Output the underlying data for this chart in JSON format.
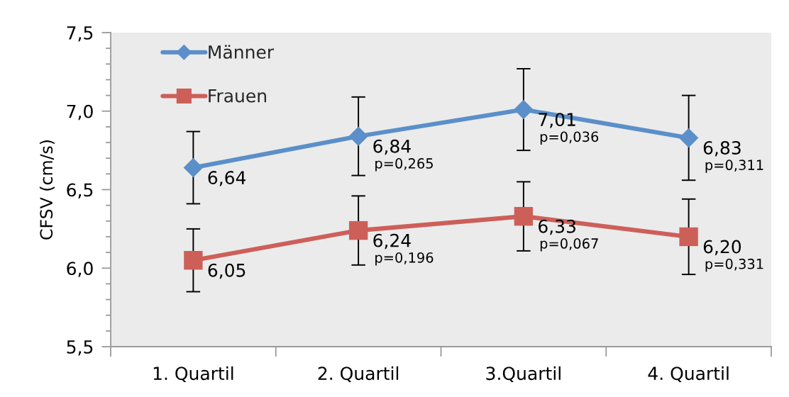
{
  "chart_data": {
    "type": "line",
    "categories": [
      "1. Quartil",
      "2. Quartil",
      "3.Quartil",
      "4. Quartil"
    ],
    "ylabel": "CFSV (cm/s)",
    "ylim": [
      5.5,
      7.5
    ],
    "yticks": [
      {
        "value": 5.5,
        "label": "5,5"
      },
      {
        "value": 5.6,
        "label": null
      },
      {
        "value": 5.7,
        "label": null
      },
      {
        "value": 5.8,
        "label": null
      },
      {
        "value": 5.9,
        "label": null
      },
      {
        "value": 6.0,
        "label": "6,0"
      },
      {
        "value": 6.1,
        "label": null
      },
      {
        "value": 6.2,
        "label": null
      },
      {
        "value": 6.3,
        "label": null
      },
      {
        "value": 6.4,
        "label": null
      },
      {
        "value": 6.5,
        "label": "6,5"
      },
      {
        "value": 6.6,
        "label": null
      },
      {
        "value": 6.7,
        "label": null
      },
      {
        "value": 6.8,
        "label": null
      },
      {
        "value": 6.9,
        "label": null
      },
      {
        "value": 7.0,
        "label": "7,0"
      },
      {
        "value": 7.1,
        "label": null
      },
      {
        "value": 7.2,
        "label": null
      },
      {
        "value": 7.3,
        "label": null
      },
      {
        "value": 7.4,
        "label": null
      },
      {
        "value": 7.5,
        "label": "7,5"
      }
    ],
    "series": [
      {
        "name": "Männer",
        "color": "#5b8fc9",
        "marker": "diamond",
        "values": [
          6.64,
          6.84,
          7.01,
          6.83
        ],
        "errors": [
          0.23,
          0.25,
          0.26,
          0.27
        ],
        "value_labels": [
          "6,64",
          "6,84",
          "7,01",
          "6,83"
        ]
      },
      {
        "name": "Frauen",
        "color": "#cd5f59",
        "marker": "square",
        "values": [
          6.05,
          6.24,
          6.33,
          6.2
        ],
        "errors": [
          0.2,
          0.22,
          0.22,
          0.24
        ],
        "value_labels": [
          "6,05",
          "6,24",
          "6,33",
          "6,20"
        ]
      }
    ],
    "annotations": [
      {
        "text": "p=0,265",
        "x": "2. Quartil",
        "y": 6.84
      },
      {
        "text": "p=0,036",
        "x": "3.Quartil",
        "y": 7.01
      },
      {
        "text": "p=0,311",
        "x": "4. Quartil",
        "y": 6.83
      },
      {
        "text": "p=0,196",
        "x": "2. Quartil",
        "y": 6.24
      },
      {
        "text": "p=0,067",
        "x": "3.Quartil",
        "y": 6.33
      },
      {
        "text": "p=0,331",
        "x": "4. Quartil",
        "y": 6.2
      }
    ],
    "legend": "top left"
  }
}
